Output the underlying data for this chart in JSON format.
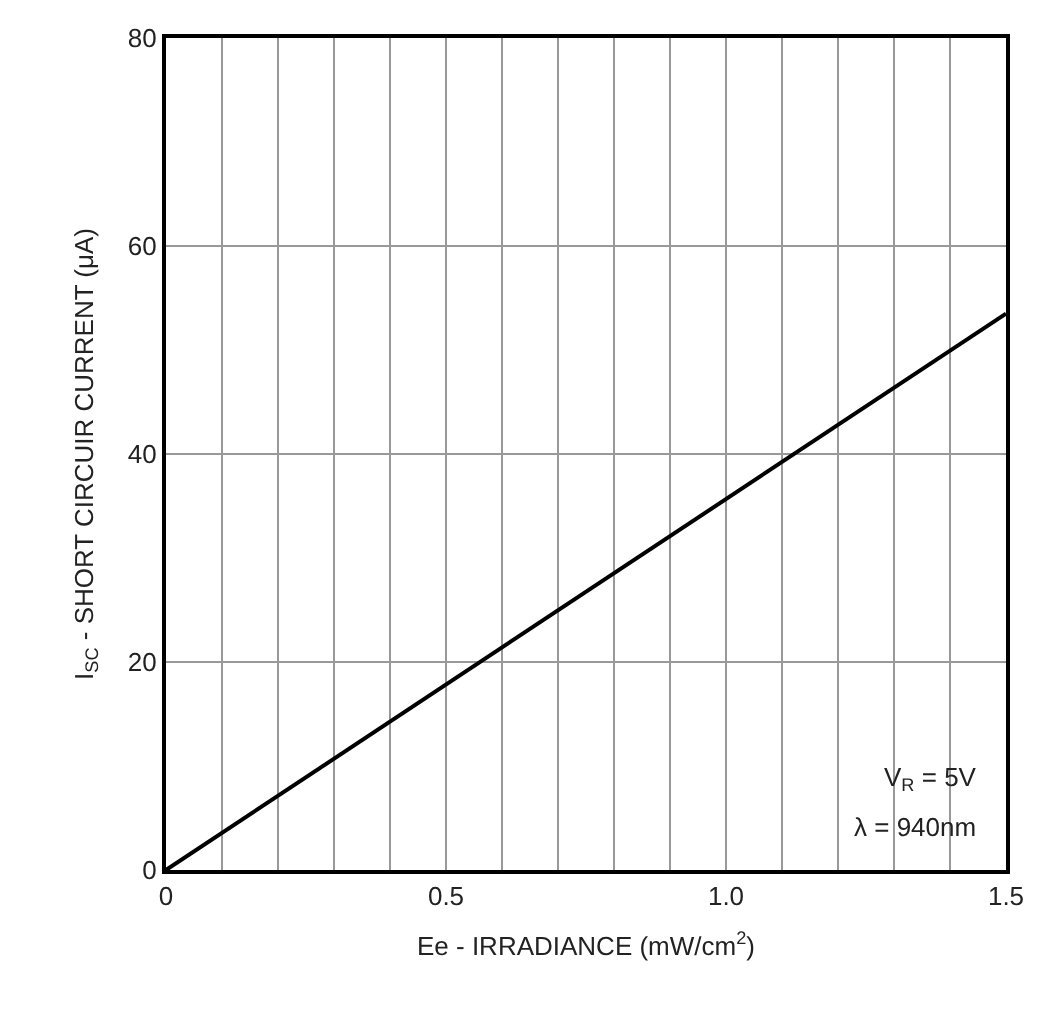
{
  "chart_data": {
    "type": "line",
    "x": [
      0,
      1.5
    ],
    "series": [
      {
        "color": "#000000",
        "values": [
          0,
          53.5
        ]
      }
    ],
    "xlabel": "Ee - IRRADIANCE (mW/cm$^{2}$)",
    "ylabel": "I$_{SC}$ - SHORT CIRCUIR CURRENT (μA)",
    "xlim": [
      0,
      1.5
    ],
    "xticks": [
      0,
      {
        "value": 0.1,
        "label": null
      },
      {
        "value": 0.2,
        "label": null
      },
      {
        "value": 0.3,
        "label": null
      },
      {
        "value": 0.4,
        "label": null
      },
      0.5,
      {
        "value": 0.6,
        "label": null
      },
      {
        "value": 0.7,
        "label": null
      },
      {
        "value": 0.8,
        "label": null
      },
      {
        "value": 0.9,
        "label": null
      },
      {
        "value": 1.0,
        "label": "1.0"
      },
      {
        "value": 1.1,
        "label": null
      },
      {
        "value": 1.2,
        "label": null
      },
      {
        "value": 1.3,
        "label": null
      },
      {
        "value": 1.4,
        "label": null
      },
      1.5
    ],
    "ylim": [
      0,
      80
    ],
    "yticks": [
      0,
      20,
      40,
      60,
      80
    ],
    "grid": true,
    "marker": "none",
    "line_style": "solid",
    "annotations": [
      "V$_{R}$ = 5V",
      "λ = 940nm"
    ]
  }
}
